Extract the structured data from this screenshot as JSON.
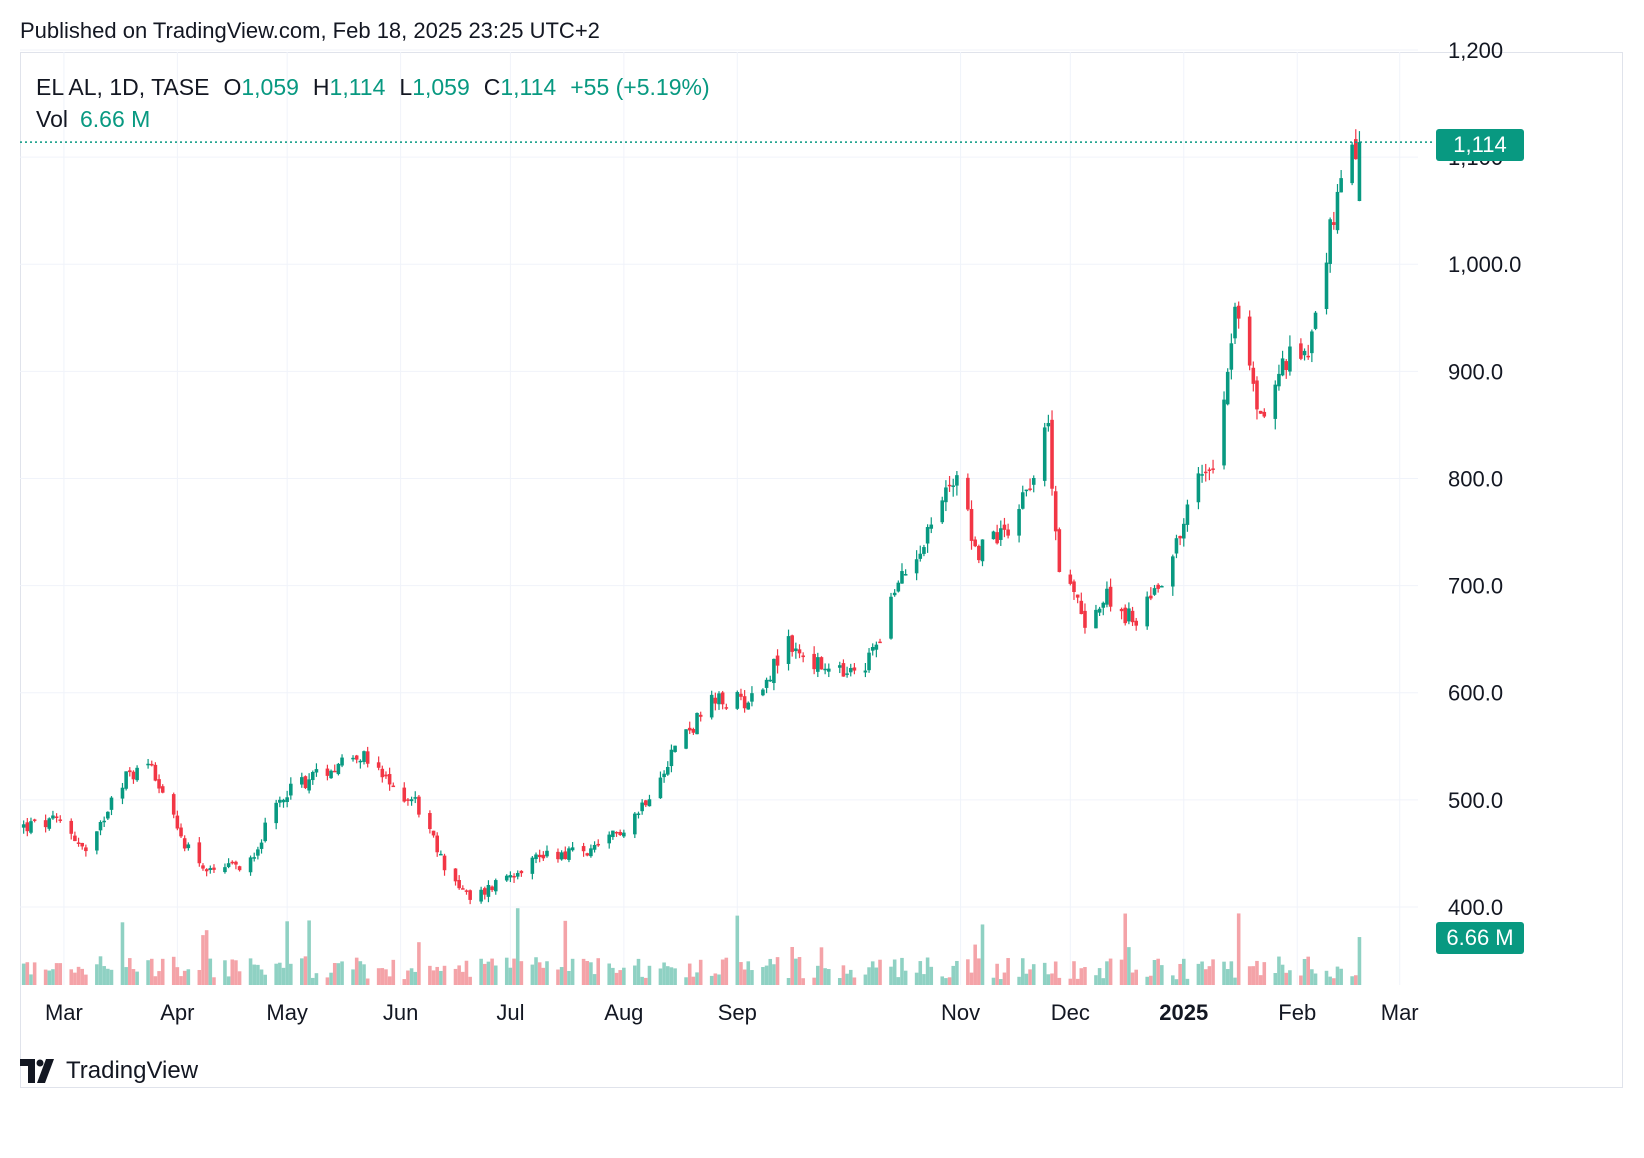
{
  "header": {
    "published": "Published on TradingView.com, Feb 18, 2025 23:25 UTC+2"
  },
  "legend": {
    "symbol": "EL AL, 1D, TASE",
    "o_label": "O",
    "o_value": "1,059",
    "h_label": "H",
    "h_value": "1,114",
    "l_label": "L",
    "l_value": "1,059",
    "c_label": "C",
    "c_value": "1,114",
    "change": "+55 (+5.19%)",
    "vol_label": "Vol",
    "vol_value": "6.66 M"
  },
  "price_tag": "1,114",
  "volume_tag": "6.66 M",
  "footer": {
    "brand": "TradingView"
  },
  "colors": {
    "up": "#089981",
    "down": "#f23645",
    "vol_up": "#8fd1c3",
    "vol_down": "#f4a3a8",
    "grid": "#f0f3fa"
  },
  "chart_data": {
    "type": "candlestick",
    "ylim": [
      350,
      1200
    ],
    "y_ticks": [
      "1,200",
      "1,100",
      "1,000.0",
      "900.0",
      "800.0",
      "700.0",
      "600.0",
      "500.0",
      "400.0"
    ],
    "y_tick_values": [
      1200,
      1100,
      1000,
      900,
      800,
      700,
      600,
      500,
      400
    ],
    "x_ticks": [
      "Mar",
      "Apr",
      "May",
      "Jun",
      "Jul",
      "Aug",
      "Sep",
      "Nov",
      "Dec",
      "2025",
      "Feb",
      "Mar"
    ],
    "last_price": 1114,
    "close_series": [
      {
        "date": "2024-02-19",
        "close": 475
      },
      {
        "date": "2024-03-01",
        "close": 480
      },
      {
        "date": "2024-03-08",
        "close": 445
      },
      {
        "date": "2024-03-15",
        "close": 515
      },
      {
        "date": "2024-03-25",
        "close": 535
      },
      {
        "date": "2024-04-01",
        "close": 470
      },
      {
        "date": "2024-04-10",
        "close": 430
      },
      {
        "date": "2024-04-20",
        "close": 440
      },
      {
        "date": "2024-05-01",
        "close": 510
      },
      {
        "date": "2024-05-10",
        "close": 525
      },
      {
        "date": "2024-05-20",
        "close": 545
      },
      {
        "date": "2024-05-30",
        "close": 510
      },
      {
        "date": "2024-06-05",
        "close": 500
      },
      {
        "date": "2024-06-12",
        "close": 445
      },
      {
        "date": "2024-06-20",
        "close": 405
      },
      {
        "date": "2024-06-30",
        "close": 430
      },
      {
        "date": "2024-07-10",
        "close": 450
      },
      {
        "date": "2024-07-25",
        "close": 452
      },
      {
        "date": "2024-08-05",
        "close": 490
      },
      {
        "date": "2024-08-15",
        "close": 550
      },
      {
        "date": "2024-08-25",
        "close": 590
      },
      {
        "date": "2024-09-05",
        "close": 595
      },
      {
        "date": "2024-09-15",
        "close": 645
      },
      {
        "date": "2024-09-25",
        "close": 620
      },
      {
        "date": "2024-10-05",
        "close": 615
      },
      {
        "date": "2024-10-15",
        "close": 700
      },
      {
        "date": "2024-10-25",
        "close": 765
      },
      {
        "date": "2024-11-01",
        "close": 815
      },
      {
        "date": "2024-11-05",
        "close": 730
      },
      {
        "date": "2024-11-15",
        "close": 760
      },
      {
        "date": "2024-11-25",
        "close": 845
      },
      {
        "date": "2024-11-28",
        "close": 715
      },
      {
        "date": "2024-12-05",
        "close": 670
      },
      {
        "date": "2024-12-12",
        "close": 690
      },
      {
        "date": "2024-12-18",
        "close": 665
      },
      {
        "date": "2024-12-28",
        "close": 720
      },
      {
        "date": "2025-01-05",
        "close": 800
      },
      {
        "date": "2025-01-10",
        "close": 825
      },
      {
        "date": "2025-01-15",
        "close": 960
      },
      {
        "date": "2025-01-22",
        "close": 855
      },
      {
        "date": "2025-01-28",
        "close": 905
      },
      {
        "date": "2025-02-04",
        "close": 925
      },
      {
        "date": "2025-02-10",
        "close": 1030
      },
      {
        "date": "2025-02-14",
        "close": 1080
      },
      {
        "date": "2025-02-18",
        "close": 1114
      }
    ]
  }
}
